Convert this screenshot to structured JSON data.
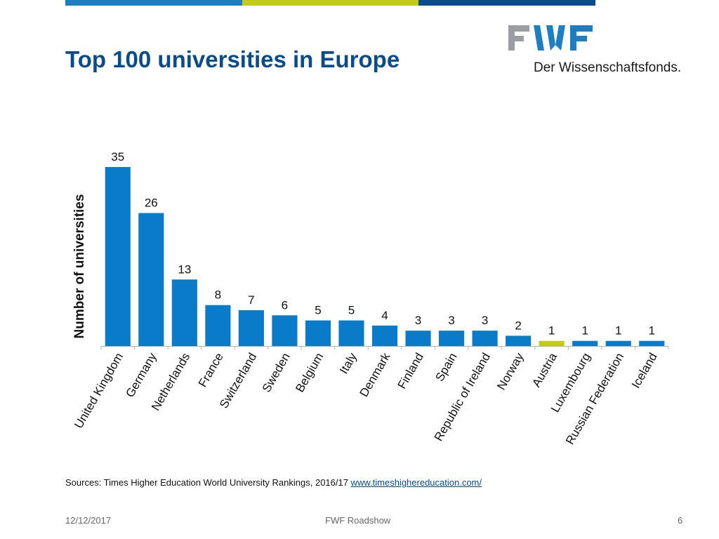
{
  "header_colors": [
    "#1f7ec2",
    "#c3cb1a",
    "#0a4b8c"
  ],
  "title": "Top 100 universities in Europe",
  "logo": {
    "text": "FWF",
    "tagline": "Der Wissenschaftsfonds.",
    "colors": {
      "gray": "#9a9ea2",
      "blue": "#1f7ec2"
    }
  },
  "chart_data": {
    "type": "bar",
    "categories": [
      "United Kingdom",
      "Germany",
      "Netherlands",
      "France",
      "Switzerland",
      "Sweden",
      "Belgium",
      "Italy",
      "Denmark",
      "Finland",
      "Spain",
      "Republic of Ireland",
      "Norway",
      "Austria",
      "Luxembourg",
      "Russian Federation",
      "Iceland"
    ],
    "values": [
      35,
      26,
      13,
      8,
      7,
      6,
      5,
      5,
      4,
      3,
      3,
      3,
      2,
      1,
      1,
      1,
      1
    ],
    "ylabel": "Number of universities",
    "xlabel": "",
    "ylim": [
      0,
      35
    ],
    "grid": false,
    "data_labels": true,
    "bar_color": "#0a7bc9",
    "highlight_category": "Austria",
    "highlight_color": "#c3cb1a"
  },
  "sources": {
    "text": "Sources: Times Higher Education World University Rankings, 2016/17",
    "link": "www.timeshighereducation.com/"
  },
  "footer": {
    "date": "12/12/2017",
    "center": "FWF Roadshow",
    "page": "6"
  }
}
